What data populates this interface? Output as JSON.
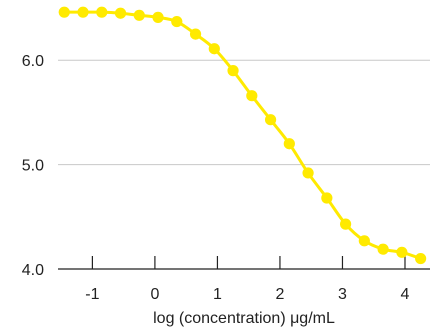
{
  "chart_data": {
    "type": "line",
    "title": "",
    "xlabel": "log (concentration) μg/mL",
    "ylabel": "",
    "xlim": [
      -1.55,
      4.4
    ],
    "ylim": [
      4.0,
      6.5
    ],
    "x_ticks": [
      -1,
      0,
      1,
      2,
      3,
      4
    ],
    "x_tick_labels": [
      "-1",
      "0",
      "1",
      "2",
      "3",
      "4"
    ],
    "y_ticks": [
      4.0,
      5.0,
      6.0
    ],
    "y_tick_labels": [
      "4.0",
      "5.0",
      "6.0"
    ],
    "grid": "horizontal",
    "legend": "none",
    "colors": {
      "series": "#FFEA00",
      "grid": "#C8C8C8",
      "axis": "#222222"
    },
    "series": [
      {
        "x": [
          -1.45,
          -1.15,
          -0.85,
          -0.55,
          -0.25,
          0.05,
          0.35,
          0.65,
          0.95,
          1.25,
          1.55,
          1.85,
          2.15,
          2.45,
          2.75,
          3.05,
          3.35,
          3.65,
          3.95,
          4.25
        ],
        "y": [
          6.46,
          6.46,
          6.46,
          6.45,
          6.43,
          6.41,
          6.37,
          6.25,
          6.11,
          5.9,
          5.66,
          5.43,
          5.2,
          4.92,
          4.68,
          4.43,
          4.27,
          4.19,
          4.16,
          4.1
        ]
      }
    ]
  }
}
